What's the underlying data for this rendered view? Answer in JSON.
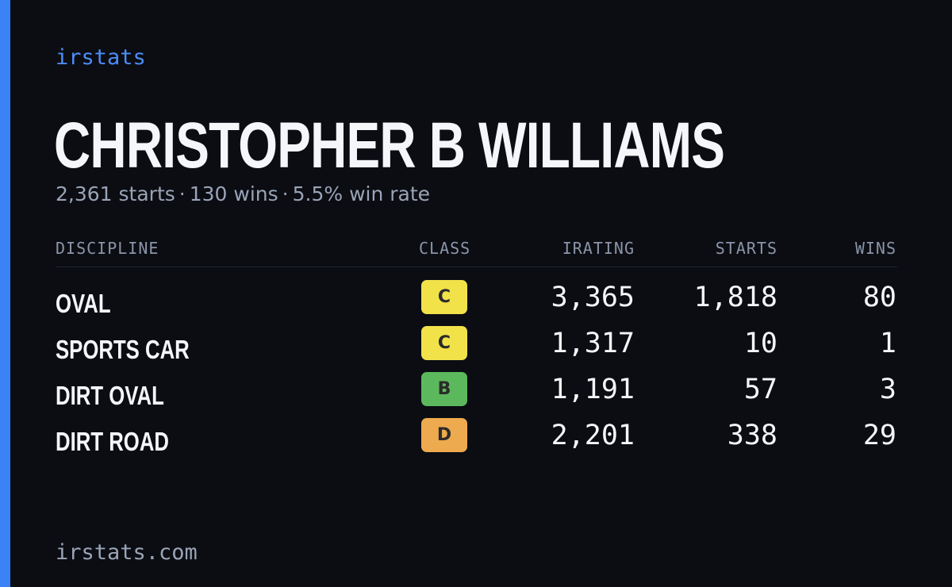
{
  "brand": {
    "logo_text": "irstats",
    "footer_url": "irstats.com",
    "accent_color": "#3b82f6"
  },
  "driver": {
    "name": "CHRISTOPHER B WILLIAMS",
    "summary": {
      "starts": "2,361 starts",
      "wins": "130 wins",
      "win_rate": "5.5% win rate",
      "separator": "·"
    }
  },
  "table": {
    "headers": {
      "discipline": "DISCIPLINE",
      "class": "CLASS",
      "irating": "IRATING",
      "starts": "STARTS",
      "wins": "WINS"
    },
    "rows": [
      {
        "discipline": "OVAL",
        "class": "C",
        "class_color": "#f1e24a",
        "irating": "3,365",
        "starts": "1,818",
        "wins": "80"
      },
      {
        "discipline": "SPORTS CAR",
        "class": "C",
        "class_color": "#f1e24a",
        "irating": "1,317",
        "starts": "10",
        "wins": "1"
      },
      {
        "discipline": "DIRT OVAL",
        "class": "B",
        "class_color": "#5cb85c",
        "irating": "1,191",
        "starts": "57",
        "wins": "3"
      },
      {
        "discipline": "DIRT ROAD",
        "class": "D",
        "class_color": "#eeaa4e",
        "irating": "2,201",
        "starts": "338",
        "wins": "29"
      }
    ]
  }
}
